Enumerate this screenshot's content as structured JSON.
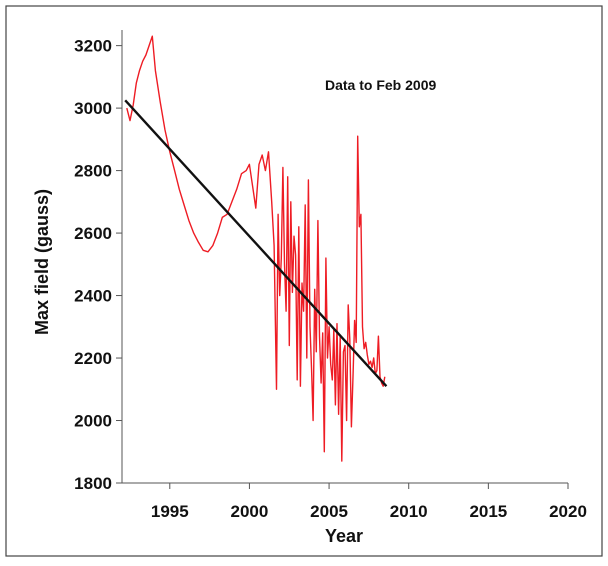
{
  "chart_data": {
    "type": "line",
    "title": "",
    "annotation": "Data to Feb 2009",
    "xlabel": "Year",
    "ylabel": "Max field (gauss)",
    "xlim": [
      1992,
      2020
    ],
    "ylim": [
      1800,
      3250
    ],
    "x_ticks": [
      1995,
      2000,
      2005,
      2010,
      2015,
      2020
    ],
    "y_ticks": [
      1800,
      2000,
      2200,
      2400,
      2600,
      2800,
      3000,
      3200
    ],
    "grid": false,
    "legend": "none",
    "colors": {
      "data_series": "#ee1c24",
      "trend_line": "#111111",
      "axes": "#555555"
    },
    "series": [
      {
        "role": "measurements",
        "x": [
          1992.3,
          1992.5,
          1992.7,
          1992.9,
          1993.1,
          1993.3,
          1993.5,
          1993.7,
          1993.9,
          1994.1,
          1994.4,
          1994.7,
          1995.0,
          1995.3,
          1995.6,
          1995.9,
          1996.2,
          1996.5,
          1996.8,
          1997.1,
          1997.4,
          1997.7,
          1998.0,
          1998.3,
          1998.6,
          1998.9,
          1999.2,
          1999.5,
          1999.8,
          2000.0,
          2000.2,
          2000.4,
          2000.6,
          2000.8,
          2001.0,
          2001.2,
          2001.4,
          2001.55,
          2001.7,
          2001.8,
          2001.9,
          2002.0,
          2002.1,
          2002.2,
          2002.3,
          2002.4,
          2002.5,
          2002.6,
          2002.7,
          2002.8,
          2002.9,
          2003.0,
          2003.1,
          2003.2,
          2003.3,
          2003.4,
          2003.5,
          2003.6,
          2003.7,
          2003.8,
          2003.9,
          2004.0,
          2004.1,
          2004.2,
          2004.3,
          2004.4,
          2004.5,
          2004.6,
          2004.7,
          2004.8,
          2004.9,
          2005.0,
          2005.1,
          2005.2,
          2005.3,
          2005.4,
          2005.5,
          2005.6,
          2005.7,
          2005.8,
          2005.9,
          2006.0,
          2006.1,
          2006.2,
          2006.3,
          2006.4,
          2006.5,
          2006.6,
          2006.7,
          2006.8,
          2006.9,
          2007.0,
          2007.1,
          2007.2,
          2007.3,
          2007.4,
          2007.5,
          2007.6,
          2007.7,
          2007.8,
          2007.9,
          2008.0,
          2008.1,
          2008.2,
          2008.3,
          2008.4,
          2008.5
        ],
        "y": [
          3000,
          2960,
          3010,
          3080,
          3120,
          3150,
          3170,
          3200,
          3230,
          3120,
          3020,
          2930,
          2860,
          2800,
          2740,
          2690,
          2640,
          2600,
          2570,
          2545,
          2540,
          2560,
          2600,
          2650,
          2660,
          2700,
          2740,
          2790,
          2800,
          2820,
          2750,
          2680,
          2820,
          2850,
          2800,
          2860,
          2700,
          2560,
          2100,
          2660,
          2400,
          2520,
          2810,
          2500,
          2350,
          2780,
          2240,
          2700,
          2410,
          2590,
          2530,
          2130,
          2620,
          2110,
          2440,
          2350,
          2690,
          2200,
          2770,
          2300,
          2160,
          2000,
          2420,
          2220,
          2640,
          2270,
          2120,
          2280,
          1900,
          2520,
          2200,
          2300,
          2180,
          2130,
          2290,
          2050,
          2310,
          2020,
          2270,
          1870,
          2220,
          2240,
          2000,
          2370,
          2260,
          1980,
          2140,
          2320,
          2250,
          2910,
          2620,
          2660,
          2300,
          2230,
          2250,
          2210,
          2180,
          2190,
          2170,
          2200,
          2150,
          2160,
          2270,
          2140,
          2120,
          2110,
          2140
        ]
      },
      {
        "role": "trend",
        "x": [
          1992.2,
          2008.6
        ],
        "y": [
          3025,
          2110
        ]
      }
    ]
  }
}
